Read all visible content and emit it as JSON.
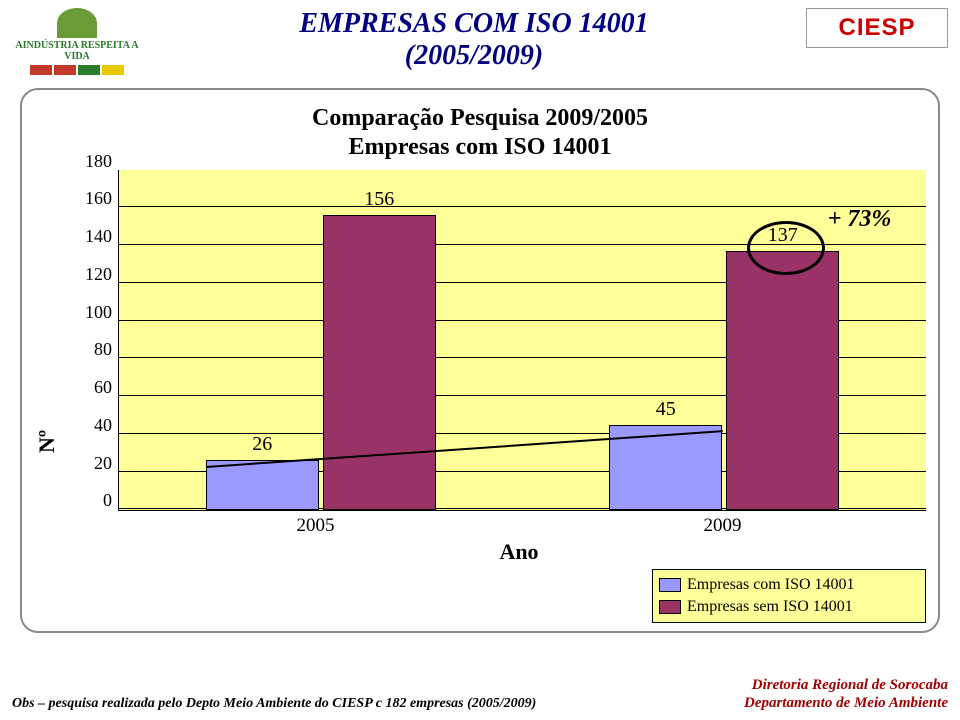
{
  "header": {
    "left_logo_text": "AINDÚSTRIA RESPEITA A VIDA",
    "left_logo_bar_colors": [
      "#c0392b",
      "#c0392b",
      "#2c7a2c",
      "#e8c800"
    ],
    "title_line1": "EMPRESAS COM ISO 14001",
    "title_line2": "(2005/2009)",
    "right_logo_text": "CIESP"
  },
  "chart": {
    "type": "bar",
    "title_line1": "Comparação Pesquisa 2009/2005",
    "title_line2": "Empresas com ISO 14001",
    "y_axis_label": "Nº",
    "x_axis_label": "Ano",
    "ylim": [
      0,
      180
    ],
    "ytick_step": 20,
    "y_ticks": [
      "0",
      "20",
      "40",
      "60",
      "80",
      "100",
      "120",
      "140",
      "160",
      "180"
    ],
    "background_color": "#ffff99",
    "grid_color": "#000000",
    "groups": [
      "2005",
      "2009"
    ],
    "series": [
      {
        "name": "Empresas com ISO 14001",
        "color": "#9999ff",
        "values": [
          26,
          45
        ]
      },
      {
        "name": "Empresas sem ISO 14001",
        "color": "#993366",
        "values": [
          156,
          137
        ]
      }
    ],
    "bar_label_fontsize": 20,
    "annotation": {
      "text": "+ 73%",
      "circle_around_bar": {
        "group": "2009",
        "series_index": 1
      }
    },
    "trendline": {
      "from_group": "2005",
      "to_group": "2009",
      "series_index": 0
    }
  },
  "legend": {
    "items": [
      {
        "label": "Empresas com ISO 14001",
        "color": "#9999ff"
      },
      {
        "label": "Empresas sem ISO 14001",
        "color": "#993366"
      }
    ]
  },
  "footer": {
    "left": "Obs – pesquisa realizada pelo Depto Meio Ambiente do CIESP c     182 empresas (2005/2009)",
    "right_line1": "Diretoria Regional de Sorocaba",
    "right_line2": "Departamento de Meio Ambiente"
  }
}
